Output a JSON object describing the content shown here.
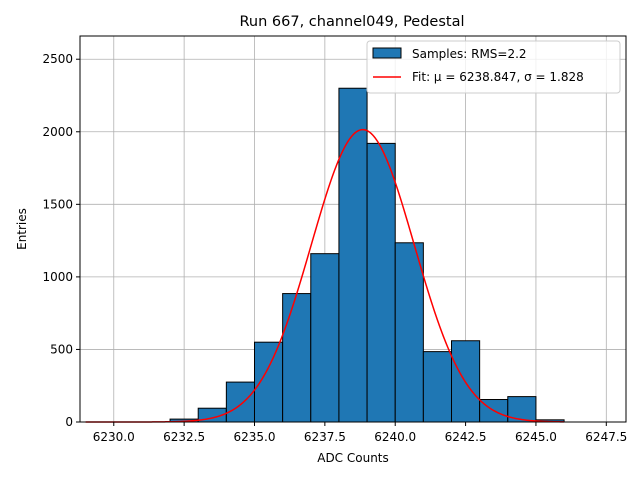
{
  "chart_data": {
    "type": "bar",
    "title": "Run 667, channel049, Pedestal",
    "xlabel": "ADC Counts",
    "ylabel": "Entries",
    "xlim": [
      6228.8,
      6248.2
    ],
    "ylim": [
      0,
      2660
    ],
    "x_ticks": [
      6230.0,
      6232.5,
      6235.0,
      6237.5,
      6240.0,
      6242.5,
      6245.0,
      6247.5
    ],
    "x_tick_labels": [
      "6230.0",
      "6232.5",
      "6235.0",
      "6237.5",
      "6240.0",
      "6242.5",
      "6245.0",
      "6247.5"
    ],
    "y_ticks": [
      0,
      500,
      1000,
      1500,
      2000,
      2500
    ],
    "y_tick_labels": [
      "0",
      "500",
      "1000",
      "1500",
      "2000",
      "2500"
    ],
    "grid": true,
    "legend_position": "top-right",
    "histogram": {
      "name": "Samples: RMS=2.2",
      "color": "#1f77b4",
      "edge_color": "#000000",
      "bins": [
        {
          "x0": 6229.0,
          "x1": 6230.0,
          "value": 0
        },
        {
          "x0": 6230.0,
          "x1": 6231.0,
          "value": 0
        },
        {
          "x0": 6231.0,
          "x1": 6232.0,
          "value": 0
        },
        {
          "x0": 6232.0,
          "x1": 6233.0,
          "value": 20
        },
        {
          "x0": 6233.0,
          "x1": 6234.0,
          "value": 95
        },
        {
          "x0": 6234.0,
          "x1": 6235.0,
          "value": 275
        },
        {
          "x0": 6235.0,
          "x1": 6236.0,
          "value": 550
        },
        {
          "x0": 6236.0,
          "x1": 6237.0,
          "value": 885
        },
        {
          "x0": 6237.0,
          "x1": 6238.0,
          "value": 1160
        },
        {
          "x0": 6238.0,
          "x1": 6239.0,
          "value": 2300
        },
        {
          "x0": 6239.0,
          "x1": 6240.0,
          "value": 1920
        },
        {
          "x0": 6240.0,
          "x1": 6241.0,
          "value": 1235
        },
        {
          "x0": 6241.0,
          "x1": 6242.0,
          "value": 485
        },
        {
          "x0": 6242.0,
          "x1": 6243.0,
          "value": 560
        },
        {
          "x0": 6243.0,
          "x1": 6244.0,
          "value": 155
        },
        {
          "x0": 6244.0,
          "x1": 6245.0,
          "value": 175
        },
        {
          "x0": 6245.0,
          "x1": 6246.0,
          "value": 15
        }
      ]
    },
    "fit": {
      "name": "Fit: μ = 6238.847, σ = 1.828",
      "color": "#ff0000",
      "mu": 6238.847,
      "sigma": 1.828,
      "amplitude": 2015,
      "x_range": [
        6229.0,
        6246.0
      ]
    }
  }
}
